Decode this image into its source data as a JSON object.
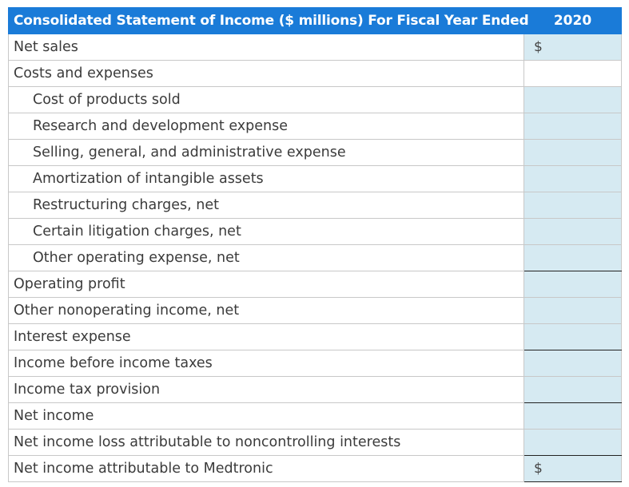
{
  "header": {
    "title": "Consolidated Statement of Income ($ millions) For Fiscal Year Ended",
    "year": "2020"
  },
  "rows": [
    {
      "label": "Net sales",
      "indent": false,
      "dollar": "$",
      "input": true
    },
    {
      "label": "Costs and expenses",
      "indent": false,
      "dollar": "",
      "input": false
    },
    {
      "label": "Cost of products sold",
      "indent": true,
      "dollar": "",
      "input": true
    },
    {
      "label": "Research and development expense",
      "indent": true,
      "dollar": "",
      "input": true
    },
    {
      "label": "Selling, general, and administrative expense",
      "indent": true,
      "dollar": "",
      "input": true
    },
    {
      "label": "Amortization of intangible assets",
      "indent": true,
      "dollar": "",
      "input": true
    },
    {
      "label": "Restructuring charges, net",
      "indent": true,
      "dollar": "",
      "input": true
    },
    {
      "label": "Certain litigation charges, net",
      "indent": true,
      "dollar": "",
      "input": true
    },
    {
      "label": "Other operating expense, net",
      "indent": true,
      "dollar": "",
      "input": true,
      "total": true
    },
    {
      "label": "Operating profit",
      "indent": false,
      "dollar": "",
      "input": true
    },
    {
      "label": "Other nonoperating income, net",
      "indent": false,
      "dollar": "",
      "input": true
    },
    {
      "label": "Interest expense",
      "indent": false,
      "dollar": "",
      "input": true,
      "total": true
    },
    {
      "label": "Income before income taxes",
      "indent": false,
      "dollar": "",
      "input": true
    },
    {
      "label": "Income tax provision",
      "indent": false,
      "dollar": "",
      "input": true,
      "total": true
    },
    {
      "label": "Net income",
      "indent": false,
      "dollar": "",
      "input": true
    },
    {
      "label": "Net income loss attributable to noncontrolling interests",
      "indent": false,
      "dollar": "",
      "input": true,
      "total": true
    },
    {
      "label": "Net income attributable to Medtronic",
      "indent": false,
      "dollar": "$",
      "input": true,
      "total": true
    }
  ],
  "colors": {
    "header_bg": "#1a7bd8",
    "input_cell_bg": "#d6eaf2",
    "grid": "#c8c8c8"
  }
}
